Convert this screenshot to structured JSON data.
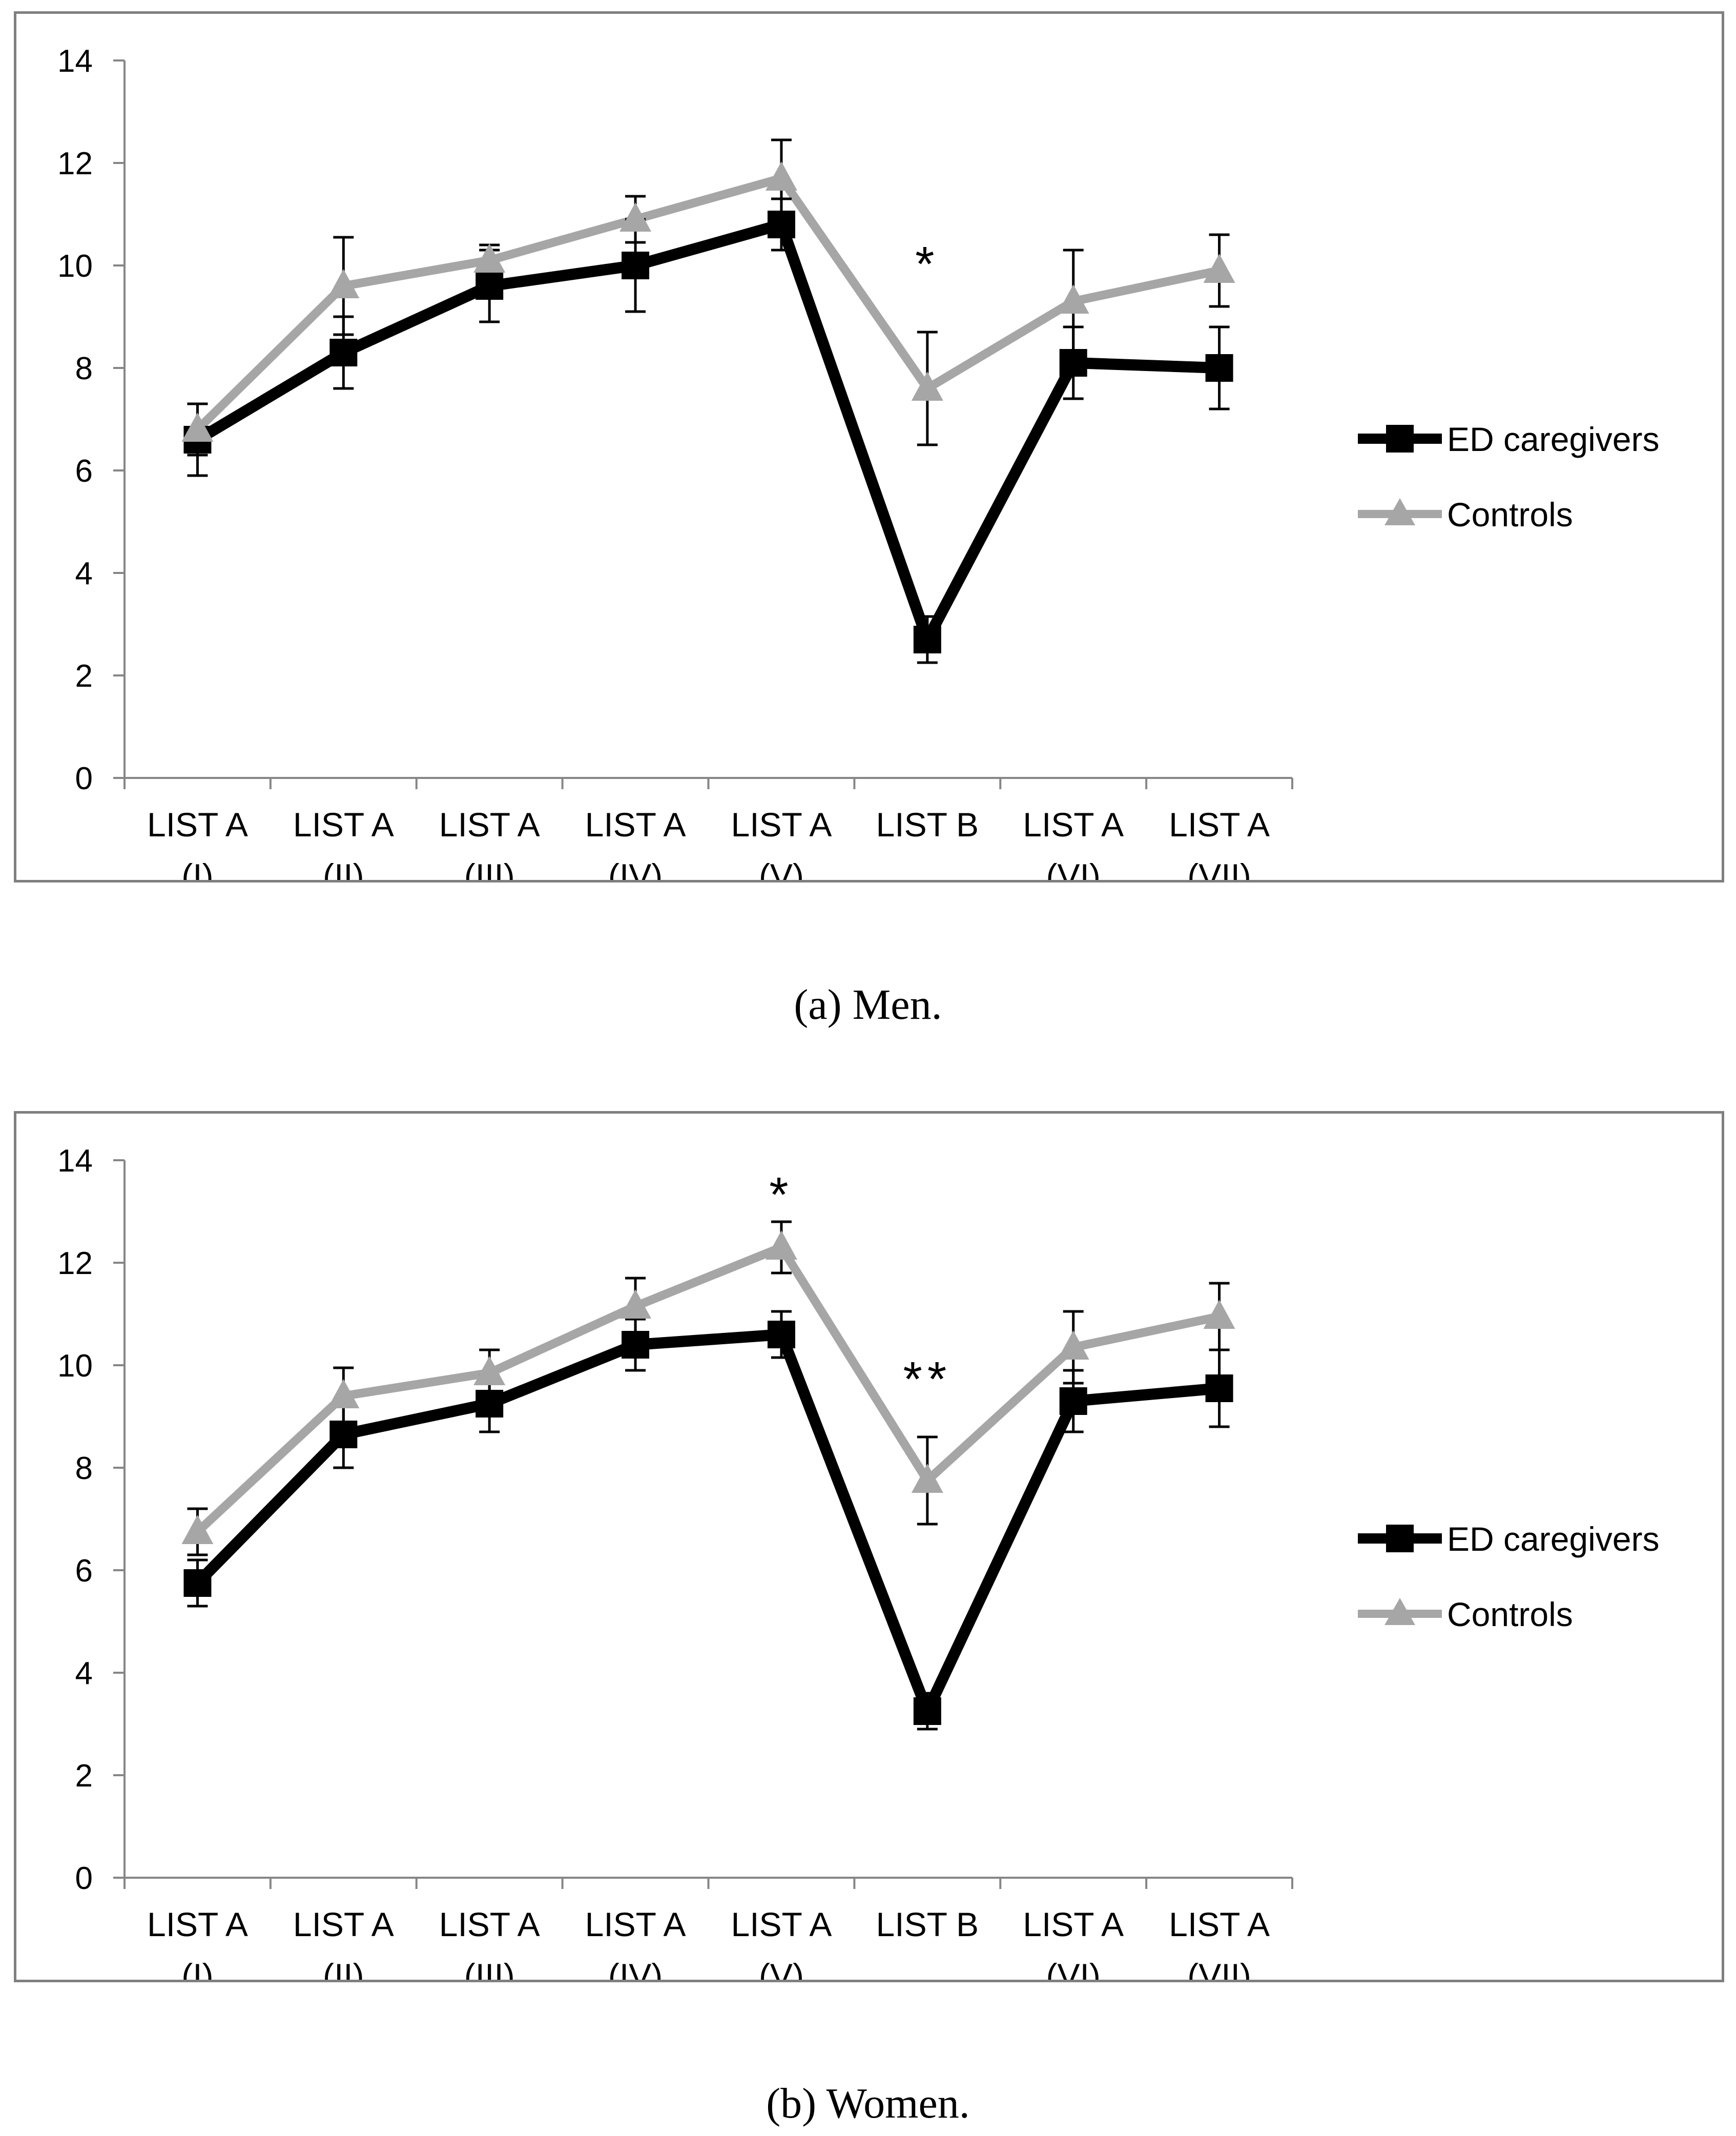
{
  "chart_data": [
    {
      "type": "line",
      "caption": "(a) Men.",
      "categories": [
        [
          "LIST A",
          "(I)"
        ],
        [
          "LIST A",
          "(II)"
        ],
        [
          "LIST A",
          "(III)"
        ],
        [
          "LIST A",
          "(IV)"
        ],
        [
          "LIST A",
          "(V)"
        ],
        [
          "LIST B",
          ""
        ],
        [
          "LIST A",
          "(VI)"
        ],
        [
          "LIST A",
          "(VII)"
        ]
      ],
      "ylim": [
        0,
        14
      ],
      "yticks": [
        "0",
        "2",
        "4",
        "6",
        "8",
        "10",
        "12",
        "14"
      ],
      "series": [
        {
          "name": "ED caregivers",
          "color": "#000000",
          "marker": "square",
          "values": [
            6.6,
            8.3,
            9.6,
            10.0,
            10.8,
            2.7,
            8.1,
            8.0
          ],
          "errors": [
            0.7,
            0.7,
            0.7,
            0.9,
            0.5,
            0.45,
            0.7,
            0.8
          ]
        },
        {
          "name": "Controls",
          "color": "#a6a6a6",
          "marker": "triangle",
          "values": [
            6.8,
            9.6,
            10.1,
            10.9,
            11.7,
            7.6,
            9.3,
            9.9
          ],
          "errors": [
            0.5,
            0.95,
            0.3,
            0.45,
            0.75,
            1.1,
            1.0,
            0.7
          ]
        }
      ],
      "annotations": [
        {
          "category_index": 5,
          "text": "*",
          "y": 10.1
        }
      ]
    },
    {
      "type": "line",
      "caption": "(b) Women.",
      "categories": [
        [
          "LIST A",
          "(I)"
        ],
        [
          "LIST A",
          "(II)"
        ],
        [
          "LIST A",
          "(III)"
        ],
        [
          "LIST A",
          "(IV)"
        ],
        [
          "LIST A",
          "(V)"
        ],
        [
          "LIST B",
          ""
        ],
        [
          "LIST A",
          "(VI)"
        ],
        [
          "LIST A",
          "(VII)"
        ]
      ],
      "ylim": [
        0,
        14
      ],
      "yticks": [
        "0",
        "2",
        "4",
        "6",
        "8",
        "10",
        "12",
        "14"
      ],
      "series": [
        {
          "name": "ED caregivers",
          "color": "#000000",
          "marker": "square",
          "values": [
            5.75,
            8.65,
            9.25,
            10.4,
            10.6,
            3.25,
            9.3,
            9.55
          ],
          "errors": [
            0.45,
            0.65,
            0.55,
            0.5,
            0.45,
            0.35,
            0.6,
            0.75
          ]
        },
        {
          "name": "Controls",
          "color": "#a6a6a6",
          "marker": "triangle",
          "values": [
            6.75,
            9.4,
            9.85,
            11.15,
            12.3,
            7.75,
            10.35,
            10.95
          ],
          "errors": [
            0.45,
            0.55,
            0.45,
            0.55,
            0.5,
            0.85,
            0.7,
            0.65
          ]
        }
      ],
      "annotations": [
        {
          "category_index": 4,
          "text": "*",
          "y": 13.4
        },
        {
          "category_index": 5,
          "text": "**",
          "y": 9.8
        }
      ]
    }
  ]
}
